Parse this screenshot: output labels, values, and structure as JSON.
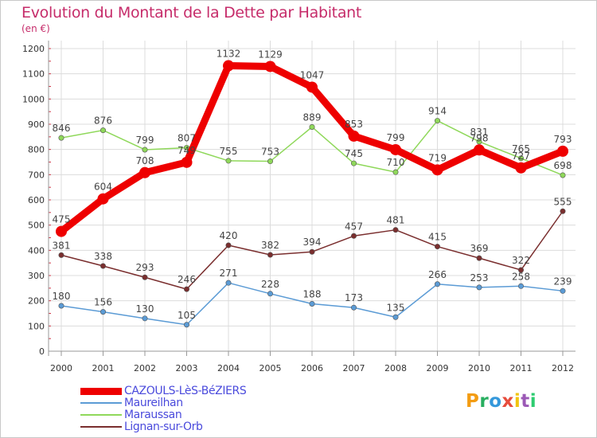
{
  "title": "Evolution du Montant de la Dette par Habitant",
  "subtitle": "(en €)",
  "logo": {
    "text": "Proxiti",
    "letter_colors": [
      "#f39c12",
      "#27ae60",
      "#3498db",
      "#e74c3c",
      "#f1c40f",
      "#9b59b6",
      "#2ecc71"
    ]
  },
  "chart_data": {
    "type": "line",
    "title": "Evolution du Montant de la Dette par Habitant",
    "subtitle": "(en €)",
    "x": [
      "2000",
      "2001",
      "2002",
      "2003",
      "2004",
      "2005",
      "2006",
      "2007",
      "2008",
      "2009",
      "2010",
      "2011",
      "2012"
    ],
    "ylim": [
      0,
      1200
    ],
    "yticks": [
      "0",
      "100",
      "200",
      "300",
      "400",
      "500",
      "600",
      "700",
      "800",
      "900",
      "1000",
      "1100",
      "1200"
    ],
    "grid": true,
    "legend_position": "bottom-left",
    "series": [
      {
        "name": "Maureilhan",
        "color": "#5b9bd5",
        "values": [
          180,
          156,
          130,
          105,
          271,
          228,
          188,
          173,
          135,
          266,
          253,
          258,
          239
        ],
        "labels": [
          "180",
          "156",
          "130",
          "105",
          "271",
          "228",
          "188",
          "173",
          "135",
          "266",
          "253",
          "258",
          "239"
        ]
      },
      {
        "name": "Maraussan",
        "color": "#8fd85a",
        "values": [
          846,
          876,
          799,
          807,
          755,
          753,
          889,
          745,
          710,
          914,
          831,
          765,
          698
        ],
        "labels": [
          "846",
          "876",
          "799",
          "807",
          "755",
          "753",
          "889",
          "745",
          "710",
          "914",
          "831",
          "765",
          "698"
        ]
      },
      {
        "name": "Lignan-sur-Orb",
        "color": "#7a2e2e",
        "values": [
          381,
          338,
          293,
          246,
          420,
          382,
          394,
          457,
          481,
          415,
          369,
          322,
          555
        ],
        "labels": [
          "381",
          "338",
          "293",
          "246",
          "420",
          "382",
          "394",
          "457",
          "481",
          "415",
          "369",
          "322",
          "555"
        ]
      },
      {
        "name": "CAZOULS-LèS-BéZIERS",
        "color": "#ee0000",
        "values": [
          475,
          604,
          708,
          749,
          1132,
          1129,
          1047,
          853,
          799,
          719,
          798,
          727,
          793
        ],
        "labels": [
          "475",
          "604",
          "708",
          "749",
          "1132",
          "1129",
          "1047",
          "853",
          "799",
          "719",
          "798",
          "727",
          "793"
        ]
      }
    ],
    "legend": [
      {
        "name": "CAZOULS-LèS-BéZIERS",
        "color": "#ee0000",
        "text_color": "#4a4adc",
        "thickness": 9
      },
      {
        "name": "Maureilhan",
        "color": "#5b9bd5",
        "text_color": "#4a4adc",
        "thickness": 2
      },
      {
        "name": "Maraussan",
        "color": "#8fd85a",
        "text_color": "#4a4adc",
        "thickness": 2
      },
      {
        "name": "Lignan-sur-Orb",
        "color": "#7a2e2e",
        "text_color": "#4a4adc",
        "thickness": 2
      }
    ]
  }
}
